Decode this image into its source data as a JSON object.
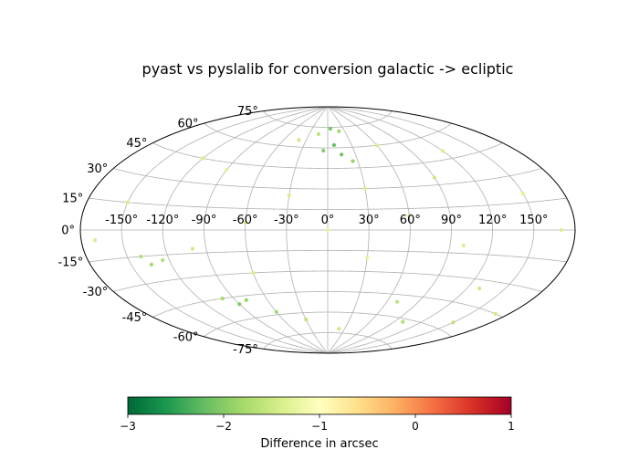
{
  "chart_data": {
    "type": "scatter",
    "projection": "aitoff",
    "title": "pyast vs pyslalib for conversion galactic -> ecliptic",
    "longitude_ticks": [
      "-150°",
      "-120°",
      "-90°",
      "-60°",
      "-30°",
      "0°",
      "30°",
      "60°",
      "90°",
      "120°",
      "150°"
    ],
    "latitude_ticks": [
      "75°",
      "60°",
      "45°",
      "30°",
      "15°",
      "0°",
      "-15°",
      "-30°",
      "-45°",
      "-60°",
      "-75°"
    ],
    "grid": true,
    "series": [
      {
        "points": [
          {
            "lon": 5,
            "lat": 74,
            "value": -2.1
          },
          {
            "lon": -15,
            "lat": 70,
            "value": -1.6
          },
          {
            "lon": 20,
            "lat": 72,
            "value": -1.8
          },
          {
            "lon": 8,
            "lat": 62,
            "value": -2.2
          },
          {
            "lon": -5,
            "lat": 58,
            "value": -2.0
          },
          {
            "lon": 15,
            "lat": 55,
            "value": -2.1
          },
          {
            "lon": 25,
            "lat": 50,
            "value": -1.9
          },
          {
            "lon": -40,
            "lat": 65,
            "value": -1.5
          },
          {
            "lon": 60,
            "lat": 60,
            "value": -1.4
          },
          {
            "lon": 120,
            "lat": 50,
            "value": -1.4
          },
          {
            "lon": -120,
            "lat": 45,
            "value": -1.4
          },
          {
            "lon": -90,
            "lat": 40,
            "value": -1.3
          },
          {
            "lon": 90,
            "lat": 35,
            "value": -1.5
          },
          {
            "lon": 30,
            "lat": 30,
            "value": -1.4
          },
          {
            "lon": -30,
            "lat": 25,
            "value": -1.4
          },
          {
            "lon": 150,
            "lat": 20,
            "value": -1.3
          },
          {
            "lon": -150,
            "lat": 15,
            "value": -1.4
          },
          {
            "lon": 60,
            "lat": 10,
            "value": -1.5
          },
          {
            "lon": -60,
            "lat": 5,
            "value": -1.4
          },
          {
            "lon": 0,
            "lat": 0,
            "value": -1.3
          },
          {
            "lon": 170,
            "lat": 0,
            "value": -1.4
          },
          {
            "lon": -170,
            "lat": -5,
            "value": -1.4
          },
          {
            "lon": 100,
            "lat": -10,
            "value": -1.4
          },
          {
            "lon": -100,
            "lat": -12,
            "value": -1.5
          },
          {
            "lon": 30,
            "lat": -20,
            "value": -1.3
          },
          {
            "lon": -140,
            "lat": -15,
            "value": -1.7
          },
          {
            "lon": -135,
            "lat": -20,
            "value": -1.8
          },
          {
            "lon": -125,
            "lat": -18,
            "value": -1.7
          },
          {
            "lon": -60,
            "lat": -30,
            "value": -1.4
          },
          {
            "lon": 130,
            "lat": -35,
            "value": -1.5
          },
          {
            "lon": -100,
            "lat": -45,
            "value": -1.8
          },
          {
            "lon": -90,
            "lat": -50,
            "value": -2.0
          },
          {
            "lon": -80,
            "lat": -48,
            "value": -1.9
          },
          {
            "lon": 70,
            "lat": -50,
            "value": -1.6
          },
          {
            "lon": -60,
            "lat": -58,
            "value": -1.8
          },
          {
            "lon": -30,
            "lat": -65,
            "value": -1.6
          },
          {
            "lon": 20,
            "lat": -72,
            "value": -1.5
          },
          {
            "lon": 100,
            "lat": -62,
            "value": -1.7
          },
          {
            "lon": 150,
            "lat": -55,
            "value": -1.6
          },
          {
            "lon": 170,
            "lat": -45,
            "value": -1.5
          }
        ]
      }
    ],
    "colorbar": {
      "label": "Difference in arcsec",
      "min": -3,
      "max": 1,
      "ticks": [
        "−3",
        "−2",
        "−1",
        "0",
        "1"
      ],
      "colormap": "RdYlGn_r",
      "stops": [
        "#006837",
        "#1a9850",
        "#66bd63",
        "#a6d96a",
        "#d9ef8b",
        "#ffffbf",
        "#fee08b",
        "#fdae61",
        "#f46d43",
        "#d73027",
        "#a50026"
      ]
    }
  }
}
